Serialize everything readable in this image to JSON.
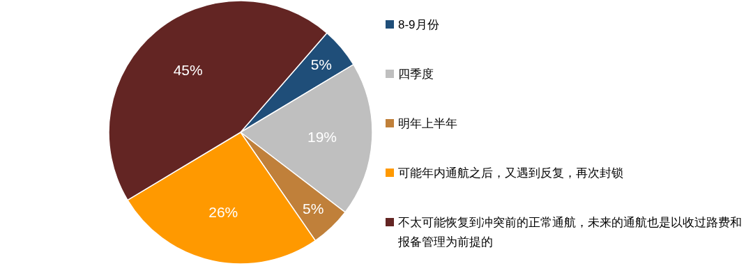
{
  "chart_data": {
    "type": "pie",
    "categories": [
      "8-9月份",
      "四季度",
      "明年上半年",
      "可能年内通航之后，又遇到反复，再次封锁",
      "不太可能恢复到冲突前的正常通航，未来的通航也是以收过路费和报备管理为前提的"
    ],
    "values": [
      5,
      19,
      5,
      26,
      45
    ],
    "value_labels": [
      "5%",
      "19%",
      "5%",
      "26%",
      "45%"
    ],
    "colors": [
      "#1f4e79",
      "#bfbfbf",
      "#c0803a",
      "#ff9900",
      "#632523"
    ],
    "legend": "right"
  }
}
